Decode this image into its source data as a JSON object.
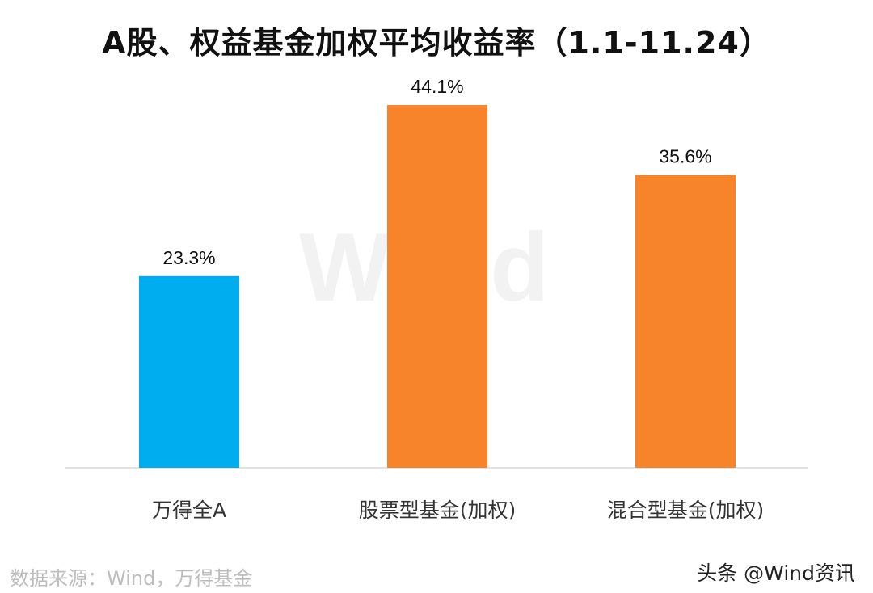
{
  "chart_data": {
    "type": "bar",
    "title": "A股、权益基金加权平均收益率（1.1-11.24）",
    "categories": [
      "万得全A",
      "股票型基金(加权)",
      "混合型基金(加权)"
    ],
    "values": [
      23.3,
      44.1,
      35.6
    ],
    "value_labels": [
      "23.3%",
      "44.1%",
      "35.6%"
    ],
    "unit": "%",
    "colors": [
      "#00aeef",
      "#f7842a",
      "#f7842a"
    ],
    "ylim": [
      0,
      50
    ],
    "grid": false,
    "legend": "none"
  },
  "watermark": "Win.d",
  "source": "数据来源：Wind，万得基金",
  "credit": "头条 @Wind资讯"
}
